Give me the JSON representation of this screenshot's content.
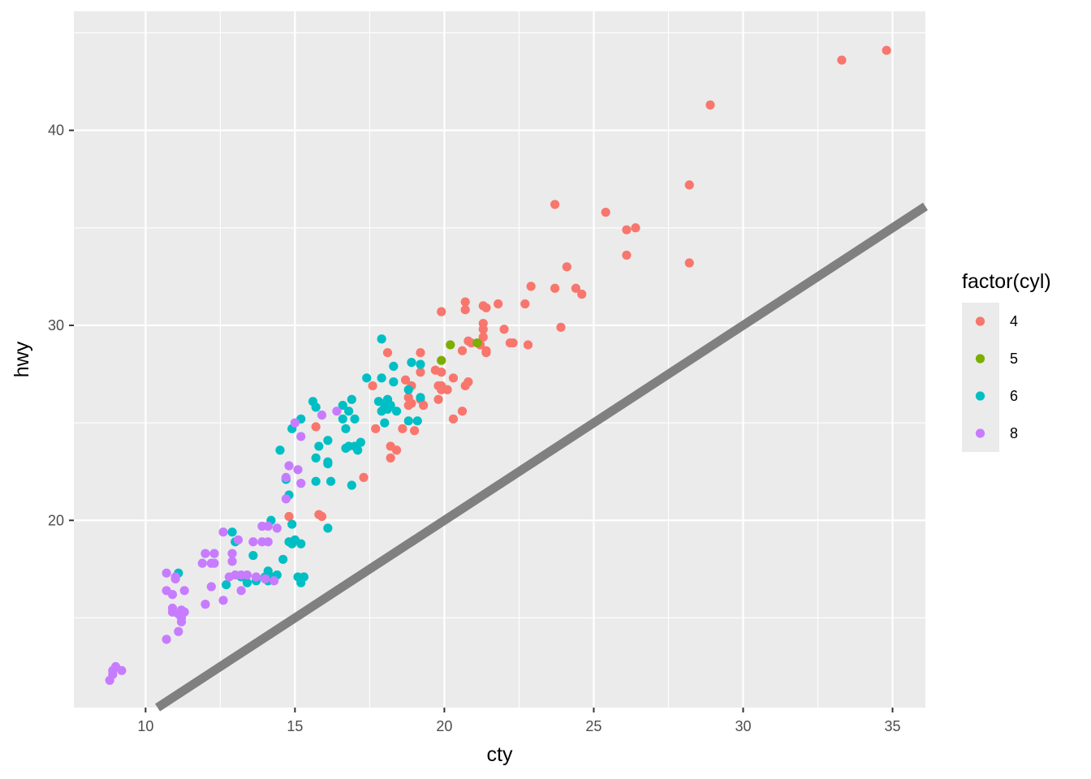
{
  "chart_data": {
    "type": "scatter",
    "xlabel": "cty",
    "ylabel": "hwy",
    "xlim": [
      7.6,
      36.1
    ],
    "ylim": [
      10.4,
      46.1
    ],
    "x_ticks": [
      10,
      15,
      20,
      25,
      30,
      35
    ],
    "y_ticks": [
      20,
      30,
      40
    ],
    "grid": true,
    "reference_line": {
      "slope": 1,
      "intercept": 0,
      "color": "#808080"
    },
    "legend": {
      "title": "factor(cyl)",
      "position": "right"
    },
    "series": [
      {
        "name": "4",
        "color": "#F8766D",
        "points": [
          [
            33.3,
            43.6
          ],
          [
            34.8,
            44.1
          ],
          [
            28.9,
            41.3
          ],
          [
            28.2,
            37.2
          ],
          [
            23.7,
            36.2
          ],
          [
            25.4,
            35.8
          ],
          [
            26.1,
            34.9
          ],
          [
            26.4,
            35.0
          ],
          [
            26.1,
            33.6
          ],
          [
            28.2,
            33.2
          ],
          [
            24.1,
            33.0
          ],
          [
            22.9,
            32.0
          ],
          [
            23.7,
            31.9
          ],
          [
            24.4,
            31.9
          ],
          [
            24.6,
            31.6
          ],
          [
            22.7,
            31.1
          ],
          [
            21.8,
            31.1
          ],
          [
            20.7,
            31.2
          ],
          [
            20.7,
            30.8
          ],
          [
            21.3,
            31.0
          ],
          [
            21.4,
            30.9
          ],
          [
            19.9,
            30.7
          ],
          [
            21.3,
            30.1
          ],
          [
            23.9,
            29.9
          ],
          [
            22.0,
            29.8
          ],
          [
            21.3,
            29.8
          ],
          [
            21.3,
            29.4
          ],
          [
            20.8,
            29.2
          ],
          [
            20.9,
            29.1
          ],
          [
            21.2,
            29.0
          ],
          [
            22.3,
            29.1
          ],
          [
            22.2,
            29.1
          ],
          [
            22.8,
            29.0
          ],
          [
            20.6,
            28.7
          ],
          [
            21.4,
            28.7
          ],
          [
            21.4,
            28.6
          ],
          [
            19.2,
            28.6
          ],
          [
            18.1,
            28.6
          ],
          [
            19.7,
            27.7
          ],
          [
            19.9,
            27.6
          ],
          [
            19.2,
            27.6
          ],
          [
            18.7,
            27.2
          ],
          [
            20.3,
            27.3
          ],
          [
            20.8,
            27.1
          ],
          [
            20.7,
            26.9
          ],
          [
            19.8,
            26.9
          ],
          [
            18.9,
            26.9
          ],
          [
            19.9,
            26.7
          ],
          [
            20.1,
            26.7
          ],
          [
            17.6,
            26.9
          ],
          [
            18.8,
            26.3
          ],
          [
            19.2,
            26.2
          ],
          [
            18.9,
            26.0
          ],
          [
            19.3,
            25.9
          ],
          [
            18.8,
            25.9
          ],
          [
            19.8,
            26.2
          ],
          [
            19.9,
            26.9
          ],
          [
            20.6,
            25.6
          ],
          [
            20.3,
            25.2
          ],
          [
            18.6,
            24.7
          ],
          [
            19.0,
            24.6
          ],
          [
            17.7,
            24.7
          ],
          [
            15.7,
            24.8
          ],
          [
            18.2,
            23.8
          ],
          [
            18.4,
            23.6
          ],
          [
            18.2,
            23.2
          ],
          [
            17.3,
            22.2
          ],
          [
            14.8,
            20.2
          ],
          [
            15.8,
            20.3
          ],
          [
            15.9,
            20.2
          ]
        ]
      },
      {
        "name": "5",
        "color": "#7CAE00",
        "points": [
          [
            20.2,
            29.0
          ],
          [
            21.1,
            29.1
          ],
          [
            19.9,
            28.2
          ]
        ]
      },
      {
        "name": "6",
        "color": "#00BFC4",
        "points": [
          [
            17.9,
            29.3
          ],
          [
            18.9,
            28.1
          ],
          [
            19.2,
            28.0
          ],
          [
            18.3,
            27.9
          ],
          [
            18.3,
            27.1
          ],
          [
            17.4,
            27.3
          ],
          [
            17.9,
            27.3
          ],
          [
            18.8,
            26.7
          ],
          [
            19.2,
            26.3
          ],
          [
            17.8,
            26.1
          ],
          [
            18.1,
            26.2
          ],
          [
            18.0,
            26.0
          ],
          [
            18.2,
            25.9
          ],
          [
            18.4,
            25.6
          ],
          [
            18.1,
            25.7
          ],
          [
            17.9,
            25.6
          ],
          [
            18.0,
            25.8
          ],
          [
            15.6,
            26.1
          ],
          [
            15.7,
            25.8
          ],
          [
            16.6,
            25.9
          ],
          [
            16.9,
            26.2
          ],
          [
            16.8,
            25.6
          ],
          [
            16.6,
            25.2
          ],
          [
            17.0,
            25.2
          ],
          [
            18.8,
            25.1
          ],
          [
            19.1,
            25.1
          ],
          [
            18.0,
            25.0
          ],
          [
            15.2,
            25.2
          ],
          [
            14.9,
            24.7
          ],
          [
            16.7,
            24.7
          ],
          [
            16.1,
            24.1
          ],
          [
            17.2,
            24.0
          ],
          [
            16.7,
            23.7
          ],
          [
            16.8,
            23.8
          ],
          [
            17.0,
            23.8
          ],
          [
            17.1,
            23.6
          ],
          [
            15.8,
            23.8
          ],
          [
            14.5,
            23.6
          ],
          [
            15.7,
            23.2
          ],
          [
            16.1,
            23.0
          ],
          [
            16.1,
            22.9
          ],
          [
            14.7,
            22.1
          ],
          [
            15.7,
            22.0
          ],
          [
            16.2,
            22.0
          ],
          [
            16.9,
            21.8
          ],
          [
            14.8,
            21.3
          ],
          [
            14.2,
            20.0
          ],
          [
            14.9,
            19.8
          ],
          [
            16.1,
            19.6
          ],
          [
            14.8,
            18.9
          ],
          [
            15.0,
            19.0
          ],
          [
            15.2,
            18.8
          ],
          [
            14.9,
            18.8
          ],
          [
            12.9,
            19.4
          ],
          [
            13.0,
            18.9
          ],
          [
            13.6,
            18.2
          ],
          [
            14.6,
            18.0
          ],
          [
            14.1,
            17.4
          ],
          [
            14.4,
            17.2
          ],
          [
            14.3,
            17.1
          ],
          [
            14.0,
            17.1
          ],
          [
            14.1,
            16.9
          ],
          [
            15.1,
            17.1
          ],
          [
            15.3,
            17.1
          ],
          [
            15.2,
            16.8
          ],
          [
            13.2,
            17.1
          ],
          [
            13.7,
            16.9
          ],
          [
            13.4,
            16.8
          ],
          [
            12.7,
            16.7
          ],
          [
            11.1,
            17.3
          ]
        ]
      },
      {
        "name": "8",
        "color": "#C77CFF",
        "points": [
          [
            15.0,
            25.0
          ],
          [
            15.2,
            24.3
          ],
          [
            15.9,
            25.4
          ],
          [
            16.4,
            25.6
          ],
          [
            15.1,
            22.6
          ],
          [
            14.8,
            22.8
          ],
          [
            14.7,
            22.2
          ],
          [
            15.2,
            21.9
          ],
          [
            14.7,
            21.1
          ],
          [
            14.4,
            19.6
          ],
          [
            14.1,
            19.7
          ],
          [
            13.9,
            19.7
          ],
          [
            13.6,
            18.9
          ],
          [
            13.9,
            18.9
          ],
          [
            14.1,
            18.9
          ],
          [
            13.1,
            19.0
          ],
          [
            12.6,
            19.4
          ],
          [
            12.0,
            18.3
          ],
          [
            12.3,
            18.3
          ],
          [
            12.9,
            18.3
          ],
          [
            12.9,
            17.9
          ],
          [
            11.9,
            17.8
          ],
          [
            12.2,
            17.8
          ],
          [
            12.3,
            17.8
          ],
          [
            12.8,
            17.1
          ],
          [
            13.0,
            17.2
          ],
          [
            13.2,
            17.2
          ],
          [
            13.4,
            17.2
          ],
          [
            13.7,
            17.1
          ],
          [
            14.0,
            17.0
          ],
          [
            14.3,
            16.9
          ],
          [
            10.7,
            17.3
          ],
          [
            11.0,
            17.1
          ],
          [
            11.0,
            17.0
          ],
          [
            12.2,
            16.6
          ],
          [
            10.7,
            16.4
          ],
          [
            10.9,
            16.2
          ],
          [
            11.3,
            16.4
          ],
          [
            13.2,
            16.4
          ],
          [
            12.6,
            15.9
          ],
          [
            12.0,
            15.7
          ],
          [
            10.9,
            15.5
          ],
          [
            11.2,
            15.4
          ],
          [
            11.3,
            15.3
          ],
          [
            10.9,
            15.3
          ],
          [
            11.1,
            15.2
          ],
          [
            11.2,
            15.0
          ],
          [
            11.2,
            14.8
          ],
          [
            11.1,
            14.3
          ],
          [
            10.7,
            13.9
          ],
          [
            9.0,
            12.5
          ],
          [
            8.9,
            12.3
          ],
          [
            9.2,
            12.3
          ],
          [
            8.9,
            12.1
          ],
          [
            8.8,
            11.8
          ]
        ]
      }
    ]
  }
}
